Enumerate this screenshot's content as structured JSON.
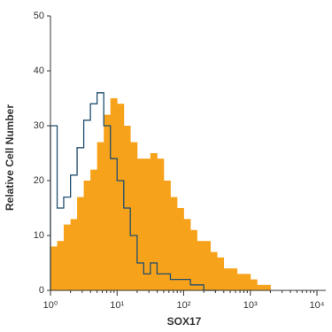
{
  "chart_data": {
    "type": "histogram",
    "xlabel": "SOX17",
    "ylabel": "Relative Cell Number",
    "log_x": true,
    "x": [
      1,
      1.26,
      1.58,
      2,
      2.51,
      3.16,
      3.98,
      5.01,
      6.31,
      7.94,
      10,
      12.6,
      15.8,
      20,
      25.1,
      31.6,
      39.8,
      50.1,
      63.1,
      79.4,
      100,
      126,
      158,
      200,
      251,
      316,
      398,
      501,
      631,
      794,
      1000,
      1260,
      1580,
      2000
    ],
    "series": [
      {
        "color": "#f7a21b",
        "fill": true,
        "values": [
          8,
          9,
          12,
          13,
          17,
          20,
          22,
          27,
          32,
          35,
          34,
          30,
          27,
          24,
          24,
          25,
          24,
          20,
          17,
          15,
          13,
          11,
          9,
          9,
          7,
          6,
          4,
          4,
          3,
          3,
          2,
          1,
          1,
          0
        ]
      },
      {
        "color": "#1f4e6e",
        "fill": false,
        "values": [
          30,
          15,
          17,
          21,
          26,
          31,
          34,
          36,
          30,
          24,
          20,
          15,
          10,
          5,
          3,
          5,
          3,
          3,
          2,
          2,
          2,
          1,
          1,
          0,
          0,
          null,
          null,
          null,
          null,
          null,
          null,
          null,
          null,
          null
        ]
      }
    ],
    "xlim": [
      1,
      10000
    ],
    "xticks": [
      {
        "value": 1,
        "label": "10⁰"
      },
      {
        "value": 10,
        "label": "10¹"
      },
      {
        "value": 100,
        "label": "10²"
      },
      {
        "value": 1000,
        "label": "10³"
      },
      {
        "value": 10000,
        "label": "10⁴"
      }
    ],
    "ylim": [
      0,
      50
    ],
    "yticks": [
      0,
      10,
      20,
      30,
      40,
      50
    ]
  }
}
